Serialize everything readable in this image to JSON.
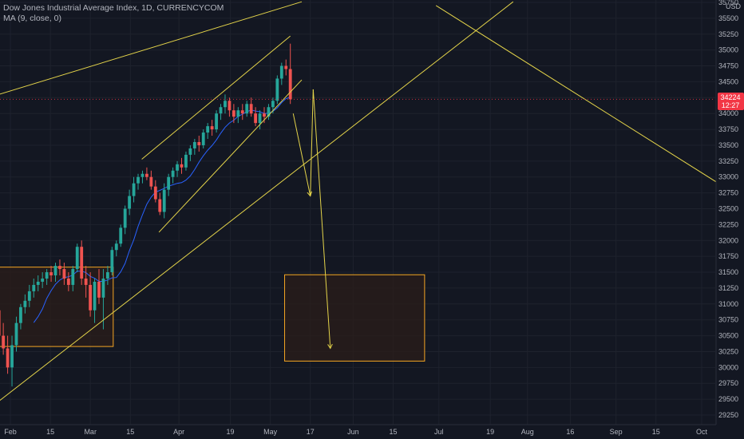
{
  "legend": {
    "title": "Dow Jones Industrial Average Index, 1D, CURRENCYCOM",
    "indicator": "MA (9, close, 0)"
  },
  "currency": "USD",
  "last_price": {
    "value": "34224",
    "countdown": "12:27"
  },
  "colors": {
    "background": "#131722",
    "grid": "#1e222d",
    "up": "#26a69a",
    "down": "#ef5350",
    "ma": "#2962ff",
    "drawing": "#e4d44a",
    "box_border": "#f5a623",
    "box_fill": "#2b1d1a",
    "price_tag": "#f23645"
  },
  "chart_data": {
    "type": "candlestick",
    "x_tick_labels": [
      "Feb",
      "15",
      "Mar",
      "15",
      "Apr",
      "19",
      "May",
      "17",
      "Jun",
      "15",
      "Jul",
      "19",
      "Aug",
      "16",
      "Sep",
      "15",
      "Oct"
    ],
    "y_tick_labels": [
      "35750",
      "35500",
      "35250",
      "35000",
      "34750",
      "34500",
      "34250",
      "34000",
      "33750",
      "33500",
      "33250",
      "33000",
      "32750",
      "32500",
      "32250",
      "32000",
      "31750",
      "31500",
      "31250",
      "31000",
      "30750",
      "30500",
      "30250",
      "30000",
      "29750",
      "29500",
      "29250"
    ],
    "ylim": [
      29200,
      35800
    ],
    "candles": [
      [
        30900,
        31100,
        30400,
        30500
      ],
      [
        30500,
        30700,
        30200,
        30300
      ],
      [
        30300,
        30500,
        29900,
        30000
      ],
      [
        30000,
        30500,
        29700,
        30350
      ],
      [
        30350,
        30800,
        30250,
        30700
      ],
      [
        30700,
        31000,
        30600,
        30950
      ],
      [
        30950,
        31150,
        30850,
        31050
      ],
      [
        31050,
        31300,
        30950,
        31200
      ],
      [
        31200,
        31400,
        31100,
        31300
      ],
      [
        31300,
        31450,
        31200,
        31350
      ],
      [
        31350,
        31500,
        31250,
        31400
      ],
      [
        31400,
        31550,
        31300,
        31500
      ],
      [
        31500,
        31600,
        31350,
        31450
      ],
      [
        31450,
        31650,
        31350,
        31600
      ],
      [
        31600,
        31700,
        31450,
        31550
      ],
      [
        31550,
        31650,
        31300,
        31400
      ],
      [
        31400,
        31500,
        31200,
        31300
      ],
      [
        31300,
        31600,
        31200,
        31550
      ],
      [
        31550,
        31950,
        31500,
        31900
      ],
      [
        31900,
        32000,
        31300,
        31400
      ],
      [
        31400,
        31600,
        31100,
        31300
      ],
      [
        31300,
        31500,
        30800,
        30900
      ],
      [
        30900,
        31400,
        30700,
        31350
      ],
      [
        31350,
        31550,
        31000,
        31100
      ],
      [
        31100,
        31550,
        30600,
        31400
      ],
      [
        31400,
        31600,
        31300,
        31500
      ],
      [
        31500,
        31900,
        31450,
        31850
      ],
      [
        31850,
        32000,
        31750,
        31950
      ],
      [
        31950,
        32250,
        31900,
        32200
      ],
      [
        32200,
        32550,
        32100,
        32500
      ],
      [
        32500,
        32800,
        32400,
        32700
      ],
      [
        32700,
        33000,
        32600,
        32900
      ],
      [
        32900,
        33050,
        32800,
        33000
      ],
      [
        33000,
        33100,
        32900,
        33050
      ],
      [
        33050,
        33150,
        32950,
        33000
      ],
      [
        33000,
        33100,
        32800,
        32850
      ],
      [
        32850,
        32950,
        32600,
        32650
      ],
      [
        32650,
        32750,
        32400,
        32450
      ],
      [
        32450,
        32900,
        32350,
        32800
      ],
      [
        32800,
        33050,
        32700,
        33000
      ],
      [
        33000,
        33150,
        32900,
        33100
      ],
      [
        33100,
        33250,
        33000,
        33200
      ],
      [
        33200,
        33300,
        33050,
        33150
      ],
      [
        33150,
        33400,
        33100,
        33350
      ],
      [
        33350,
        33500,
        33250,
        33450
      ],
      [
        33450,
        33600,
        33350,
        33550
      ],
      [
        33550,
        33650,
        33400,
        33500
      ],
      [
        33500,
        33750,
        33450,
        33700
      ],
      [
        33700,
        33850,
        33600,
        33800
      ],
      [
        33800,
        33900,
        33650,
        33750
      ],
      [
        33750,
        34050,
        33700,
        34000
      ],
      [
        34000,
        34150,
        33900,
        34100
      ],
      [
        34100,
        34300,
        34000,
        34200
      ],
      [
        34200,
        34250,
        33950,
        34050
      ],
      [
        34050,
        34150,
        33850,
        33950
      ],
      [
        33950,
        34100,
        33850,
        34050
      ],
      [
        34050,
        34150,
        33900,
        34000
      ],
      [
        34000,
        34200,
        33950,
        34150
      ],
      [
        34150,
        34250,
        33950,
        34000
      ],
      [
        34000,
        34100,
        33800,
        33850
      ],
      [
        33850,
        34050,
        33750,
        34000
      ],
      [
        34000,
        34100,
        33850,
        33950
      ],
      [
        33950,
        34150,
        33900,
        34100
      ],
      [
        34100,
        34250,
        34000,
        34200
      ],
      [
        34200,
        34600,
        34150,
        34550
      ],
      [
        34550,
        34800,
        34450,
        34750
      ],
      [
        34750,
        34850,
        34600,
        34700
      ],
      [
        34700,
        35100,
        34150,
        34224
      ]
    ],
    "first_candle_date": "2021-01-28",
    "last_candle_date": "2021-05-10",
    "annotations": {
      "trend_lines": [
        {
          "from": [
            "2021-01-04",
            33970
          ],
          "to": [
            "2021-05-14",
            35760
          ]
        },
        {
          "from": [
            "2021-03-19",
            33280
          ],
          "to": [
            "2021-05-10",
            35220
          ]
        },
        {
          "from": [
            "2021-03-25",
            32130
          ],
          "to": [
            "2021-05-14",
            34530
          ]
        },
        {
          "from": [
            "2021-01-18",
            29120
          ],
          "to": [
            "2021-07-27",
            35760
          ]
        },
        {
          "from": [
            "2021-06-30",
            35700
          ],
          "to": [
            "2021-10-21",
            32500
          ]
        }
      ],
      "arrows": [
        {
          "from": [
            "2021-05-11",
            34000
          ],
          "to": [
            "2021-05-17",
            32700
          ],
          "head": true
        },
        {
          "from": [
            "2021-05-17",
            32700
          ],
          "to": [
            "2021-05-18",
            34380
          ],
          "head": false
        },
        {
          "from": [
            "2021-05-18",
            34380
          ],
          "to": [
            "2021-05-24",
            30300
          ],
          "head": true
        }
      ],
      "boxes": [
        {
          "from": [
            "2021-01-04",
            31580
          ],
          "to": [
            "2021-03-09",
            30330
          ]
        },
        {
          "from": [
            "2021-05-08",
            31460
          ],
          "to": [
            "2021-06-26",
            30100
          ]
        }
      ]
    }
  }
}
